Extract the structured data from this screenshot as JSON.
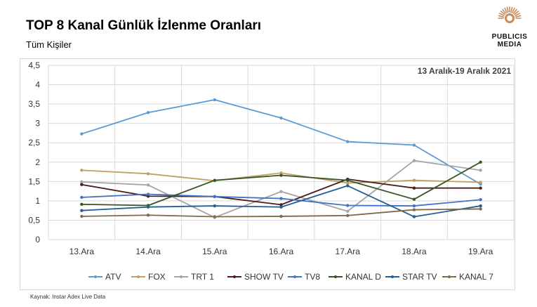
{
  "header": {
    "title": "TOP 8 Kanal Günlük İzlenme Oranları",
    "subtitle": "Tüm Kişiler"
  },
  "logo": {
    "line1": "PUBLICIS",
    "line2": "MEDIA",
    "icon": "lion-head-icon",
    "color": "#c98b5b"
  },
  "footer": {
    "source": "Kaynak: Instar  Adex Live Data"
  },
  "chart_data": {
    "type": "line",
    "annotation": "13 Aralık-19 Aralık 2021",
    "categories": [
      "13.Ara",
      "14.Ara",
      "15.Ara",
      "16.Ara",
      "17.Ara",
      "18.Ara",
      "19.Ara"
    ],
    "ylim": [
      0,
      4.5
    ],
    "yticks": [
      "0",
      "0,5",
      "1",
      "1,5",
      "2",
      "2,5",
      "3",
      "3,5",
      "4",
      "4,5"
    ],
    "grid": true,
    "legend_position": "bottom",
    "series": [
      {
        "name": "ATV",
        "color": "#5b9bd5",
        "values": [
          2.73,
          3.28,
          3.61,
          3.14,
          2.53,
          2.44,
          1.43
        ]
      },
      {
        "name": "FOX",
        "color": "#c0a063",
        "values": [
          1.79,
          1.7,
          1.52,
          1.72,
          1.46,
          1.53,
          1.48
        ]
      },
      {
        "name": "TRT 1",
        "color": "#a5a5a5",
        "values": [
          1.49,
          1.41,
          0.57,
          1.24,
          0.73,
          2.04,
          1.79
        ]
      },
      {
        "name": "SHOW TV",
        "color": "#4a1c1c",
        "values": [
          1.42,
          1.12,
          1.11,
          0.9,
          1.56,
          1.33,
          1.33
        ]
      },
      {
        "name": "TV8",
        "color": "#4472c4",
        "values": [
          1.09,
          1.17,
          1.11,
          1.06,
          0.88,
          0.87,
          1.03
        ]
      },
      {
        "name": "KANAL D",
        "color": "#375623",
        "values": [
          0.91,
          0.88,
          1.53,
          1.66,
          1.53,
          1.04,
          2.0
        ]
      },
      {
        "name": "STAR TV",
        "color": "#255e91",
        "values": [
          0.75,
          0.84,
          0.87,
          0.84,
          1.39,
          0.59,
          0.87
        ]
      },
      {
        "name": "KANAL 7",
        "color": "#7f6b4a",
        "values": [
          0.6,
          0.63,
          0.59,
          0.6,
          0.62,
          0.77,
          0.79
        ]
      }
    ]
  }
}
